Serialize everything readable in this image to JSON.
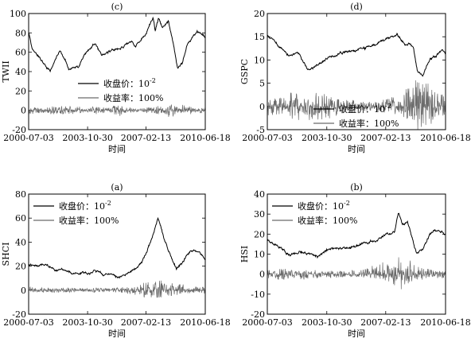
{
  "chart_data": [
    {
      "panel": "(c)",
      "type": "line",
      "title": "(c)",
      "ylabel": "TWII",
      "xlabel": "",
      "ylim": [
        -20,
        100
      ],
      "yticks": [
        -20,
        0,
        20,
        40,
        60,
        80,
        100
      ],
      "xticks": [
        "2000-07-03",
        "2003-10-30",
        "2007-02-13",
        "2010-06-18"
      ],
      "legend": {
        "placement": "middle-left",
        "entries": [
          [
            "收盘价：10",
            "-2"
          ],
          [
            "收益率：100%",
            ""
          ]
        ]
      },
      "series": [
        {
          "kind": "price",
          "points": [
            [
              "2000-07-03",
              80
            ],
            [
              "2000-09-15",
              62
            ],
            [
              "2001-02-01",
              55
            ],
            [
              "2001-09-20",
              40
            ],
            [
              "2002-04-10",
              63
            ],
            [
              "2002-10-10",
              42
            ],
            [
              "2003-04-25",
              45
            ],
            [
              "2003-10-30",
              62
            ],
            [
              "2004-03-20",
              68
            ],
            [
              "2004-08-10",
              57
            ],
            [
              "2005-03-10",
              62
            ],
            [
              "2005-11-01",
              66
            ],
            [
              "2006-05-01",
              72
            ],
            [
              "2006-07-15",
              65
            ],
            [
              "2007-02-13",
              80
            ],
            [
              "2007-07-10",
              95
            ],
            [
              "2007-08-20",
              82
            ],
            [
              "2007-10-30",
              95
            ],
            [
              "2008-01-20",
              85
            ],
            [
              "2008-05-20",
              92
            ],
            [
              "2008-09-01",
              68
            ],
            [
              "2008-11-20",
              44
            ],
            [
              "2009-03-01",
              48
            ],
            [
              "2009-06-01",
              67
            ],
            [
              "2010-01-01",
              82
            ],
            [
              "2010-06-18",
              75
            ]
          ]
        },
        {
          "kind": "return",
          "band": [
            [
              -4,
              4
            ],
            [
              -3,
              3
            ],
            [
              -4,
              4
            ],
            [
              -5,
              5
            ],
            [
              -4,
              4
            ],
            [
              -3,
              3
            ],
            [
              -4,
              4
            ],
            [
              -3,
              3
            ],
            [
              -6,
              6
            ],
            [
              -3,
              3
            ],
            [
              -2,
              2
            ],
            [
              -3,
              3
            ],
            [
              -4,
              5
            ],
            [
              -7,
              7
            ],
            [
              -5,
              6
            ],
            [
              -4,
              4
            ],
            [
              -3,
              3
            ]
          ]
        }
      ]
    },
    {
      "panel": "(d)",
      "type": "line",
      "title": "(d)",
      "ylabel": "GSPC",
      "xlabel": "",
      "ylim": [
        -5,
        20
      ],
      "yticks": [
        -5,
        0,
        5,
        10,
        15,
        20
      ],
      "xticks": [
        "2000-07-03",
        "2003-10-30",
        "2007-02-13",
        "2010-06-18"
      ],
      "legend": {
        "placement": "bottom-right",
        "entries": [
          [
            "收盘价：10",
            "-2"
          ],
          [
            "收益率：100%",
            ""
          ]
        ]
      },
      "series": [
        {
          "kind": "price",
          "points": [
            [
              "2000-07-03",
              15.2
            ],
            [
              "2000-09-15",
              14.8
            ],
            [
              "2001-04-01",
              12.5
            ],
            [
              "2001-09-20",
              10.8
            ],
            [
              "2002-03-01",
              11.5
            ],
            [
              "2002-07-20",
              9.2
            ],
            [
              "2002-10-10",
              8.0
            ],
            [
              "2003-03-10",
              8.3
            ],
            [
              "2003-10-30",
              10.4
            ],
            [
              "2004-06-01",
              11.3
            ],
            [
              "2005-06-01",
              12.0
            ],
            [
              "2006-05-01",
              13.0
            ],
            [
              "2007-02-13",
              14.5
            ],
            [
              "2007-10-09",
              15.6
            ],
            [
              "2008-03-10",
              13.0
            ],
            [
              "2008-06-01",
              13.5
            ],
            [
              "2008-09-01",
              12.5
            ],
            [
              "2008-11-20",
              7.5
            ],
            [
              "2009-03-09",
              6.8
            ],
            [
              "2009-08-01",
              10.0
            ],
            [
              "2010-04-20",
              12.0
            ],
            [
              "2010-06-18",
              11.0
            ]
          ]
        },
        {
          "kind": "return",
          "band": [
            [
              -2,
              2
            ],
            [
              -2,
              2
            ],
            [
              -3,
              3
            ],
            [
              -2,
              2.5
            ],
            [
              -3,
              4
            ],
            [
              -3,
              3
            ],
            [
              -2,
              2
            ],
            [
              -1.5,
              1.5
            ],
            [
              -1,
              1.5
            ],
            [
              -1,
              1
            ],
            [
              -1,
              1
            ],
            [
              -1.5,
              2
            ],
            [
              -2,
              2
            ],
            [
              -3,
              4
            ],
            [
              -6,
              7
            ],
            [
              -4,
              5
            ],
            [
              -2,
              3
            ]
          ]
        }
      ]
    },
    {
      "panel": "(a)",
      "type": "line",
      "title": "(a)",
      "ylabel": "SHCI",
      "xlabel": "",
      "ylim": [
        -20,
        80
      ],
      "yticks": [
        -20,
        0,
        20,
        40,
        60,
        80
      ],
      "xticks": [
        "2000-07-03",
        "2003-10-30",
        "2007-02-13",
        "2010-06-18"
      ],
      "legend": {
        "placement": "top-left",
        "entries": [
          [
            "收盘价：10",
            "-2"
          ],
          [
            "收益率：100%",
            ""
          ]
        ]
      },
      "series": [
        {
          "kind": "price",
          "points": [
            [
              "2000-07-03",
              20
            ],
            [
              "2001-06-01",
              22
            ],
            [
              "2002-01-20",
              16
            ],
            [
              "2002-06-20",
              17
            ],
            [
              "2003-01-01",
              14.5
            ],
            [
              "2003-10-30",
              14
            ],
            [
              "2004-04-01",
              17
            ],
            [
              "2004-09-01",
              13.5
            ],
            [
              "2005-06-01",
              11
            ],
            [
              "2006-01-01",
              12
            ],
            [
              "2006-06-01",
              17
            ],
            [
              "2006-12-01",
              24
            ],
            [
              "2007-02-13",
              30
            ],
            [
              "2007-06-01",
              42
            ],
            [
              "2007-10-16",
              60
            ],
            [
              "2008-03-01",
              42
            ],
            [
              "2008-07-01",
              28
            ],
            [
              "2008-11-01",
              18
            ],
            [
              "2009-03-01",
              22
            ],
            [
              "2009-08-01",
              33
            ],
            [
              "2009-11-01",
              33
            ],
            [
              "2010-02-01",
              31
            ],
            [
              "2010-06-18",
              26
            ]
          ]
        },
        {
          "kind": "return",
          "band": [
            [
              -2,
              3
            ],
            [
              -2,
              2
            ],
            [
              -2,
              2
            ],
            [
              -2,
              2
            ],
            [
              -2,
              2
            ],
            [
              -1.5,
              1.5
            ],
            [
              -2,
              2
            ],
            [
              -1.5,
              1.5
            ],
            [
              -2,
              2
            ],
            [
              -3,
              3
            ],
            [
              -4,
              5
            ],
            [
              -6,
              7
            ],
            [
              -7,
              8
            ],
            [
              -5,
              6
            ],
            [
              -4,
              5
            ],
            [
              -3,
              4
            ],
            [
              -3,
              3
            ]
          ]
        }
      ]
    },
    {
      "panel": "(b)",
      "type": "line",
      "title": "(b)",
      "ylabel": "HSI",
      "xlabel": "",
      "ylim": [
        -20,
        40
      ],
      "yticks": [
        -20,
        -10,
        0,
        10,
        20,
        30,
        40
      ],
      "xticks": [
        "2000-07-03",
        "2003-10-30",
        "2007-02-13",
        "2010-06-18"
      ],
      "legend": {
        "placement": "top-left",
        "entries": [
          [
            "收盘价：10",
            "-2"
          ],
          [
            "收益率：100%",
            ""
          ]
        ]
      },
      "series": [
        {
          "kind": "price",
          "points": [
            [
              "2000-07-03",
              17
            ],
            [
              "2000-09-15",
              16
            ],
            [
              "2001-04-01",
              13
            ],
            [
              "2001-09-20",
              9.5
            ],
            [
              "2002-05-01",
              11
            ],
            [
              "2003-04-25",
              8.5
            ],
            [
              "2003-10-30",
              12
            ],
            [
              "2004-04-01",
              13
            ],
            [
              "2004-09-01",
              12.5
            ],
            [
              "2005-06-01",
              14
            ],
            [
              "2006-05-01",
              16.5
            ],
            [
              "2006-07-01",
              16
            ],
            [
              "2007-02-13",
              20
            ],
            [
              "2007-08-15",
              21
            ],
            [
              "2007-10-30",
              31
            ],
            [
              "2008-01-20",
              25
            ],
            [
              "2008-05-01",
              26
            ],
            [
              "2008-10-27",
              11
            ],
            [
              "2009-03-01",
              12.5
            ],
            [
              "2009-08-01",
              20
            ],
            [
              "2009-11-15",
              22
            ],
            [
              "2010-06-18",
              20
            ]
          ]
        },
        {
          "kind": "return",
          "band": [
            [
              -2,
              2
            ],
            [
              -3,
              3
            ],
            [
              -2,
              2
            ],
            [
              -3,
              2
            ],
            [
              -2,
              2
            ],
            [
              -1.5,
              1.5
            ],
            [
              -2,
              2
            ],
            [
              -1.5,
              1.5
            ],
            [
              -1.5,
              2
            ],
            [
              -2,
              3
            ],
            [
              -3,
              5
            ],
            [
              -4,
              6
            ],
            [
              -8,
              9
            ],
            [
              -6,
              7
            ],
            [
              -3,
              4
            ],
            [
              -2,
              3
            ],
            [
              -2,
              3
            ]
          ]
        }
      ]
    }
  ],
  "x_axis_title": "时间"
}
